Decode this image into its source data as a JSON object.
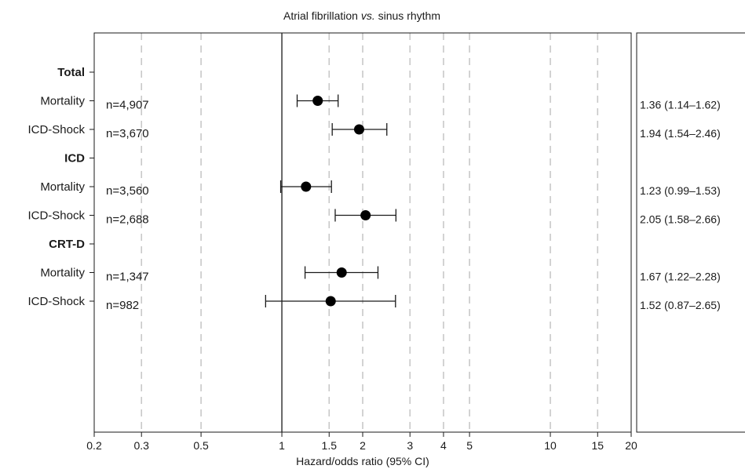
{
  "chart_data": {
    "type": "forest",
    "title_main": "Atrial fibrillation ",
    "title_italic": "vs.",
    "title_end": " sinus rhythm",
    "xlabel": "Hazard/odds ratio (95% CI)",
    "xscale": "log",
    "xlim": [
      0.2,
      20
    ],
    "x_ticks": [
      0.2,
      0.3,
      0.5,
      1,
      1.5,
      2,
      3,
      4,
      5,
      10,
      15,
      20
    ],
    "x_tick_labels": [
      "0.2",
      "0.3",
      "0.5",
      "1",
      "1.5",
      "2",
      "3",
      "4",
      "5",
      "10",
      "15",
      "20"
    ],
    "gridlines_dashed_at": [
      0.3,
      0.5,
      1.5,
      2,
      3,
      4,
      5,
      10,
      15
    ],
    "reference_line": 1,
    "rows": [
      {
        "label": "Total",
        "header": true
      },
      {
        "label": "Mortality",
        "n": "n=4,907",
        "estimate": 1.36,
        "ci_low": 1.14,
        "ci_high": 1.62,
        "value_label": "1.36 (1.14–1.62)"
      },
      {
        "label": "ICD-Shock",
        "n": "n=3,670",
        "estimate": 1.94,
        "ci_low": 1.54,
        "ci_high": 2.46,
        "value_label": "1.94 (1.54–2.46)"
      },
      {
        "label": "ICD",
        "header": true
      },
      {
        "label": "Mortality",
        "n": "n=3,560",
        "estimate": 1.23,
        "ci_low": 0.99,
        "ci_high": 1.53,
        "value_label": "1.23 (0.99–1.53)"
      },
      {
        "label": "ICD-Shock",
        "n": "n=2,688",
        "estimate": 2.05,
        "ci_low": 1.58,
        "ci_high": 2.66,
        "value_label": "2.05 (1.58–2.66)"
      },
      {
        "label": "CRT-D",
        "header": true
      },
      {
        "label": "Mortality",
        "n": "n=1,347",
        "estimate": 1.67,
        "ci_low": 1.22,
        "ci_high": 2.28,
        "value_label": "1.67 (1.22–2.28)"
      },
      {
        "label": "ICD-Shock",
        "n": "n=982",
        "estimate": 1.52,
        "ci_low": 0.87,
        "ci_high": 2.65,
        "value_label": "1.52 (0.87–2.65)"
      }
    ],
    "colors": {
      "axis": "#1a1a1a",
      "grid": "#c8c8c8",
      "point": "#000000"
    }
  }
}
